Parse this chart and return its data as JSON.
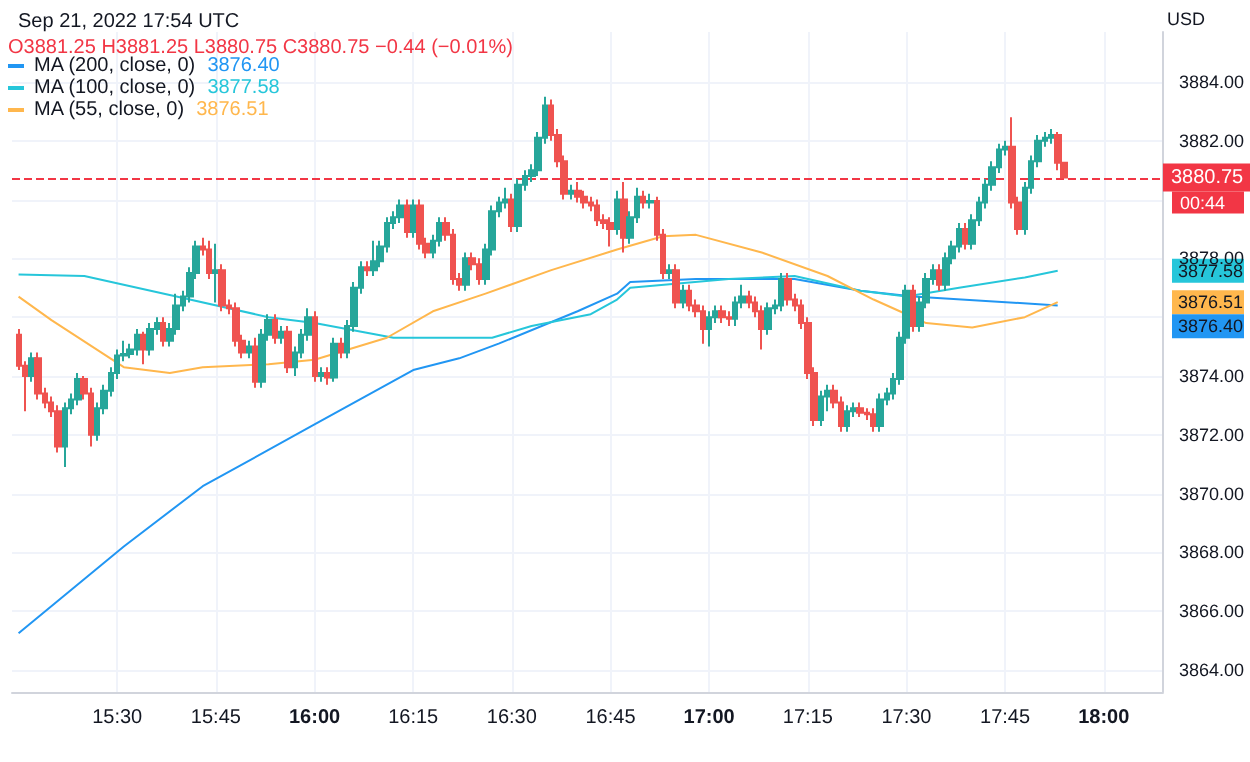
{
  "chart_data": {
    "type": "candlestick",
    "subtitle": "Sep 21, 2022 17:54 UTC",
    "ylabel": "USD",
    "annotations": [
      "O3881.25 H3881.25 L3880.75 C3880.75 −0.44 (−0.01%)",
      "00:44",
      "3876.40",
      "3877.58",
      "3876.51"
    ],
    "x": [
      "2022-09-21T15:15",
      "2022-09-21T15:16",
      "2022-09-21T15:17",
      "2022-09-21T15:18",
      "2022-09-21T15:19",
      "2022-09-21T15:20",
      "2022-09-21T15:21",
      "2022-09-21T15:22",
      "2022-09-21T15:23",
      "2022-09-21T15:24",
      "2022-09-21T15:25",
      "2022-09-21T15:26",
      "2022-09-21T15:27",
      "2022-09-21T15:28",
      "2022-09-21T15:29",
      "2022-09-21T15:30",
      "2022-09-21T15:31",
      "2022-09-21T15:32",
      "2022-09-21T15:33",
      "2022-09-21T15:34",
      "2022-09-21T15:35",
      "2022-09-21T15:36",
      "2022-09-21T15:37",
      "2022-09-21T15:38",
      "2022-09-21T15:39",
      "2022-09-21T15:40",
      "2022-09-21T15:41",
      "2022-09-21T15:42",
      "2022-09-21T15:43",
      "2022-09-21T15:44",
      "2022-09-21T15:45",
      "2022-09-21T15:46",
      "2022-09-21T15:47",
      "2022-09-21T15:48",
      "2022-09-21T15:49",
      "2022-09-21T15:50",
      "2022-09-21T15:51",
      "2022-09-21T15:52",
      "2022-09-21T15:53",
      "2022-09-21T15:54",
      "2022-09-21T15:55",
      "2022-09-21T15:56",
      "2022-09-21T15:57",
      "2022-09-21T15:58",
      "2022-09-21T15:59",
      "2022-09-21T16:00",
      "2022-09-21T16:01",
      "2022-09-21T16:02",
      "2022-09-21T16:03",
      "2022-09-21T16:04",
      "2022-09-21T16:05",
      "2022-09-21T16:06",
      "2022-09-21T16:07",
      "2022-09-21T16:08",
      "2022-09-21T16:09",
      "2022-09-21T16:10",
      "2022-09-21T16:11",
      "2022-09-21T16:12",
      "2022-09-21T16:13",
      "2022-09-21T16:14",
      "2022-09-21T16:15",
      "2022-09-21T16:16",
      "2022-09-21T16:17",
      "2022-09-21T16:18",
      "2022-09-21T16:19",
      "2022-09-21T16:20",
      "2022-09-21T16:21",
      "2022-09-21T16:22",
      "2022-09-21T16:23",
      "2022-09-21T16:24",
      "2022-09-21T16:25",
      "2022-09-21T16:26",
      "2022-09-21T16:27",
      "2022-09-21T16:28",
      "2022-09-21T16:29",
      "2022-09-21T16:30",
      "2022-09-21T16:31",
      "2022-09-21T16:32",
      "2022-09-21T16:33",
      "2022-09-21T16:34",
      "2022-09-21T16:35",
      "2022-09-21T16:36",
      "2022-09-21T16:37",
      "2022-09-21T16:38",
      "2022-09-21T16:39",
      "2022-09-21T16:40",
      "2022-09-21T16:41",
      "2022-09-21T16:42",
      "2022-09-21T16:43",
      "2022-09-21T16:44",
      "2022-09-21T16:45",
      "2022-09-21T16:46",
      "2022-09-21T16:47",
      "2022-09-21T16:48",
      "2022-09-21T16:49",
      "2022-09-21T16:50",
      "2022-09-21T16:51",
      "2022-09-21T16:52",
      "2022-09-21T16:53",
      "2022-09-21T16:54",
      "2022-09-21T16:55",
      "2022-09-21T16:56",
      "2022-09-21T16:57",
      "2022-09-21T16:58",
      "2022-09-21T16:59",
      "2022-09-21T17:00",
      "2022-09-21T17:01",
      "2022-09-21T17:02",
      "2022-09-21T17:03",
      "2022-09-21T17:04",
      "2022-09-21T17:05",
      "2022-09-21T17:06",
      "2022-09-21T17:07",
      "2022-09-21T17:08",
      "2022-09-21T17:09",
      "2022-09-21T17:10",
      "2022-09-21T17:11",
      "2022-09-21T17:12",
      "2022-09-21T17:13",
      "2022-09-21T17:14",
      "2022-09-21T17:15",
      "2022-09-21T17:16",
      "2022-09-21T17:17",
      "2022-09-21T17:18",
      "2022-09-21T17:19",
      "2022-09-21T17:20",
      "2022-09-21T17:21",
      "2022-09-21T17:22",
      "2022-09-21T17:23",
      "2022-09-21T17:24",
      "2022-09-21T17:25",
      "2022-09-21T17:26",
      "2022-09-21T17:27",
      "2022-09-21T17:28",
      "2022-09-21T17:29",
      "2022-09-21T17:30",
      "2022-09-21T17:31",
      "2022-09-21T17:32",
      "2022-09-21T17:33",
      "2022-09-21T17:34",
      "2022-09-21T17:35",
      "2022-09-21T17:36",
      "2022-09-21T17:37",
      "2022-09-21T17:38",
      "2022-09-21T17:39",
      "2022-09-21T17:40",
      "2022-09-21T17:41",
      "2022-09-21T17:42",
      "2022-09-21T17:43",
      "2022-09-21T17:44",
      "2022-09-21T17:45",
      "2022-09-21T17:46",
      "2022-09-21T17:47",
      "2022-09-21T17:48",
      "2022-09-21T17:49",
      "2022-09-21T17:50",
      "2022-09-21T17:51",
      "2022-09-21T17:52",
      "2022-09-21T17:53",
      "2022-09-21T17:54"
    ],
    "ohlc": [
      [
        3875.4,
        3875.6,
        3874.2,
        3874.35
      ],
      [
        3874.35,
        3874.5,
        3872.8,
        3874.0
      ],
      [
        3874.0,
        3874.8,
        3873.8,
        3874.6
      ],
      [
        3874.6,
        3874.8,
        3873.2,
        3873.4
      ],
      [
        3873.4,
        3873.6,
        3872.9,
        3873.1
      ],
      [
        3873.1,
        3873.3,
        3872.6,
        3872.8
      ],
      [
        3872.8,
        3873.0,
        3871.4,
        3871.6
      ],
      [
        3871.6,
        3873.1,
        3870.9,
        3872.9
      ],
      [
        3872.9,
        3873.4,
        3872.7,
        3873.2
      ],
      [
        3873.2,
        3874.1,
        3873.0,
        3873.9
      ],
      [
        3873.9,
        3874.0,
        3873.2,
        3873.4
      ],
      [
        3873.4,
        3873.6,
        3871.6,
        3872.0
      ],
      [
        3872.0,
        3873.1,
        3871.8,
        3872.9
      ],
      [
        3872.9,
        3873.7,
        3872.7,
        3873.5
      ],
      [
        3873.5,
        3874.3,
        3873.3,
        3874.1
      ],
      [
        3874.1,
        3874.9,
        3873.9,
        3874.7
      ],
      [
        3874.7,
        3875.2,
        3874.5,
        3874.75
      ],
      [
        3874.75,
        3875.1,
        3874.6,
        3874.9
      ],
      [
        3874.9,
        3875.6,
        3874.7,
        3875.4
      ],
      [
        3875.4,
        3875.5,
        3874.4,
        3874.9
      ],
      [
        3874.9,
        3875.8,
        3874.7,
        3875.6
      ],
      [
        3875.6,
        3876.0,
        3875.4,
        3875.8
      ],
      [
        3875.8,
        3876.0,
        3875.0,
        3875.2
      ],
      [
        3875.2,
        3875.8,
        3875.0,
        3875.6
      ],
      [
        3875.6,
        3876.8,
        3875.4,
        3876.4
      ],
      [
        3876.4,
        3876.9,
        3876.2,
        3876.7
      ],
      [
        3876.7,
        3877.7,
        3876.5,
        3877.5
      ],
      [
        3877.5,
        3878.6,
        3877.3,
        3878.4
      ],
      [
        3878.4,
        3878.7,
        3878.1,
        3878.3
      ],
      [
        3878.3,
        3878.6,
        3877.3,
        3877.5
      ],
      [
        3877.5,
        3878.5,
        3876.5,
        3877.6
      ],
      [
        3877.6,
        3877.8,
        3876.2,
        3876.4
      ],
      [
        3876.4,
        3876.6,
        3876.1,
        3876.3
      ],
      [
        3876.3,
        3876.5,
        3875.0,
        3875.2
      ],
      [
        3875.2,
        3875.4,
        3874.6,
        3874.8
      ],
      [
        3874.8,
        3875.2,
        3874.6,
        3875.0
      ],
      [
        3875.0,
        3875.3,
        3873.6,
        3873.8
      ],
      [
        3873.8,
        3875.6,
        3873.6,
        3875.4
      ],
      [
        3875.4,
        3876.1,
        3875.2,
        3875.9
      ],
      [
        3875.9,
        3876.1,
        3875.1,
        3875.3
      ],
      [
        3875.3,
        3875.7,
        3875.1,
        3875.5
      ],
      [
        3875.5,
        3875.7,
        3874.1,
        3874.3
      ],
      [
        3874.3,
        3875.0,
        3874.0,
        3874.8
      ],
      [
        3874.8,
        3875.6,
        3874.6,
        3875.4
      ],
      [
        3875.4,
        3876.3,
        3875.2,
        3876.0
      ],
      [
        3876.0,
        3876.2,
        3873.8,
        3874.0
      ],
      [
        3874.0,
        3874.3,
        3873.8,
        3874.1
      ],
      [
        3874.1,
        3874.3,
        3873.7,
        3873.95
      ],
      [
        3873.95,
        3875.3,
        3873.8,
        3875.1
      ],
      [
        3875.1,
        3875.3,
        3874.6,
        3874.8
      ],
      [
        3874.8,
        3875.9,
        3874.6,
        3875.7
      ],
      [
        3875.7,
        3877.2,
        3875.5,
        3877.0
      ],
      [
        3877.0,
        3877.9,
        3876.8,
        3877.7
      ],
      [
        3877.7,
        3877.9,
        3877.4,
        3877.6
      ],
      [
        3877.6,
        3878.6,
        3877.4,
        3877.9
      ],
      [
        3877.9,
        3878.6,
        3877.7,
        3878.4
      ],
      [
        3878.4,
        3879.4,
        3878.2,
        3879.2
      ],
      [
        3879.2,
        3879.6,
        3879.0,
        3879.4
      ],
      [
        3879.4,
        3880.0,
        3879.2,
        3879.8
      ],
      [
        3879.8,
        3880.0,
        3878.7,
        3878.9
      ],
      [
        3878.9,
        3880.0,
        3878.7,
        3879.8
      ],
      [
        3879.8,
        3880.0,
        3878.3,
        3878.5
      ],
      [
        3878.5,
        3878.7,
        3878.0,
        3878.2
      ],
      [
        3878.2,
        3878.8,
        3878.0,
        3878.6
      ],
      [
        3878.6,
        3879.4,
        3878.4,
        3879.2
      ],
      [
        3879.2,
        3879.4,
        3878.6,
        3878.8
      ],
      [
        3878.8,
        3879.0,
        3877.1,
        3877.3
      ],
      [
        3877.3,
        3877.5,
        3876.9,
        3877.1
      ],
      [
        3877.1,
        3878.2,
        3876.9,
        3878.0
      ],
      [
        3878.0,
        3878.2,
        3877.6,
        3877.8
      ],
      [
        3877.8,
        3878.0,
        3877.1,
        3877.3
      ],
      [
        3877.3,
        3878.5,
        3877.1,
        3878.3
      ],
      [
        3878.3,
        3879.8,
        3878.1,
        3879.6
      ],
      [
        3879.6,
        3880.1,
        3879.4,
        3879.9
      ],
      [
        3879.9,
        3880.4,
        3879.7,
        3880.0
      ],
      [
        3880.0,
        3880.2,
        3878.9,
        3879.1
      ],
      [
        3879.1,
        3880.7,
        3878.9,
        3880.5
      ],
      [
        3880.5,
        3881.0,
        3880.3,
        3880.8
      ],
      [
        3880.8,
        3881.2,
        3880.6,
        3881.0
      ],
      [
        3881.0,
        3882.3,
        3880.8,
        3882.1
      ],
      [
        3882.1,
        3883.5,
        3881.9,
        3883.2
      ],
      [
        3883.2,
        3883.4,
        3882.0,
        3882.2
      ],
      [
        3882.2,
        3882.4,
        3881.1,
        3881.3
      ],
      [
        3881.3,
        3881.5,
        3880.0,
        3880.2
      ],
      [
        3880.2,
        3880.5,
        3880.0,
        3880.3
      ],
      [
        3880.3,
        3880.6,
        3879.9,
        3880.1
      ],
      [
        3880.1,
        3880.3,
        3879.7,
        3879.9
      ],
      [
        3879.9,
        3880.1,
        3879.6,
        3879.8
      ],
      [
        3879.8,
        3880.0,
        3879.1,
        3879.3
      ],
      [
        3879.3,
        3879.5,
        3879.0,
        3879.2
      ],
      [
        3879.2,
        3879.4,
        3878.4,
        3879.0
      ],
      [
        3879.0,
        3880.3,
        3878.8,
        3880.0
      ],
      [
        3880.0,
        3880.6,
        3878.2,
        3878.7
      ],
      [
        3878.7,
        3879.6,
        3878.5,
        3879.4
      ],
      [
        3879.4,
        3880.4,
        3879.2,
        3880.1
      ],
      [
        3880.1,
        3880.3,
        3879.7,
        3879.9
      ],
      [
        3879.9,
        3880.2,
        3879.7,
        3879.95
      ],
      [
        3879.95,
        3880.1,
        3878.6,
        3878.8
      ],
      [
        3878.8,
        3879.0,
        3877.3,
        3877.5
      ],
      [
        3877.5,
        3877.8,
        3877.3,
        3877.6
      ],
      [
        3877.6,
        3877.8,
        3876.3,
        3876.5
      ],
      [
        3876.5,
        3877.1,
        3876.3,
        3876.9
      ],
      [
        3876.9,
        3877.1,
        3876.2,
        3876.4
      ],
      [
        3876.4,
        3876.6,
        3876.0,
        3876.2
      ],
      [
        3876.2,
        3876.4,
        3875.1,
        3875.6
      ],
      [
        3875.6,
        3876.2,
        3875.0,
        3876.0
      ],
      [
        3876.0,
        3876.4,
        3875.8,
        3876.2
      ],
      [
        3876.2,
        3876.4,
        3875.8,
        3876.0
      ],
      [
        3876.0,
        3876.2,
        3875.7,
        3875.95
      ],
      [
        3875.95,
        3876.7,
        3875.7,
        3876.5
      ],
      [
        3876.5,
        3877.1,
        3876.3,
        3876.7
      ],
      [
        3876.7,
        3876.9,
        3876.3,
        3876.5
      ],
      [
        3876.5,
        3876.7,
        3876.0,
        3876.2
      ],
      [
        3876.2,
        3876.4,
        3874.9,
        3875.6
      ],
      [
        3875.6,
        3876.5,
        3875.4,
        3876.3
      ],
      [
        3876.3,
        3876.6,
        3876.1,
        3876.4
      ],
      [
        3876.4,
        3877.5,
        3876.2,
        3877.3
      ],
      [
        3877.3,
        3877.5,
        3876.4,
        3876.6
      ],
      [
        3876.6,
        3876.8,
        3876.2,
        3876.4
      ],
      [
        3876.4,
        3876.6,
        3875.6,
        3875.8
      ],
      [
        3875.8,
        3876.0,
        3873.9,
        3874.1
      ],
      [
        3874.1,
        3874.3,
        3872.3,
        3872.5
      ],
      [
        3872.5,
        3873.5,
        3872.3,
        3873.3
      ],
      [
        3873.3,
        3873.7,
        3872.8,
        3873.5
      ],
      [
        3873.5,
        3873.7,
        3872.9,
        3873.1
      ],
      [
        3873.1,
        3873.3,
        3872.1,
        3872.3
      ],
      [
        3872.3,
        3873.0,
        3872.1,
        3872.8
      ],
      [
        3872.8,
        3873.1,
        3872.6,
        3872.9
      ],
      [
        3872.9,
        3873.1,
        3872.6,
        3872.75
      ],
      [
        3872.75,
        3872.9,
        3872.5,
        3872.7
      ],
      [
        3872.7,
        3872.9,
        3872.1,
        3872.3
      ],
      [
        3872.3,
        3873.4,
        3872.1,
        3873.2
      ],
      [
        3873.2,
        3873.6,
        3873.0,
        3873.4
      ],
      [
        3873.4,
        3874.1,
        3873.2,
        3873.9
      ],
      [
        3873.9,
        3875.5,
        3873.7,
        3875.3
      ],
      [
        3875.3,
        3877.1,
        3875.1,
        3876.9
      ],
      [
        3876.9,
        3877.1,
        3875.5,
        3875.7
      ],
      [
        3875.7,
        3876.7,
        3875.5,
        3876.5
      ],
      [
        3876.5,
        3877.5,
        3876.3,
        3877.3
      ],
      [
        3877.3,
        3877.8,
        3877.1,
        3877.6
      ],
      [
        3877.6,
        3877.8,
        3876.9,
        3877.1
      ],
      [
        3877.1,
        3878.2,
        3876.9,
        3878.0
      ],
      [
        3878.0,
        3878.6,
        3877.8,
        3878.4
      ],
      [
        3878.4,
        3879.2,
        3878.2,
        3879.0
      ],
      [
        3879.0,
        3879.2,
        3878.3,
        3878.5
      ],
      [
        3878.5,
        3879.5,
        3878.3,
        3879.3
      ],
      [
        3879.3,
        3880.1,
        3879.1,
        3879.9
      ],
      [
        3879.9,
        3880.7,
        3879.7,
        3880.5
      ],
      [
        3880.5,
        3881.3,
        3880.3,
        3881.1
      ],
      [
        3881.1,
        3881.9,
        3880.9,
        3881.7
      ],
      [
        3881.7,
        3882.0,
        3881.5,
        3881.8
      ],
      [
        3881.8,
        3882.8,
        3879.7,
        3879.9
      ],
      [
        3879.9,
        3880.1,
        3878.8,
        3879.0
      ],
      [
        3879.0,
        3880.6,
        3878.8,
        3880.4
      ],
      [
        3880.4,
        3881.5,
        3880.2,
        3881.3
      ],
      [
        3881.3,
        3882.2,
        3881.1,
        3882.0
      ],
      [
        3882.0,
        3882.3,
        3881.8,
        3882.1
      ],
      [
        3882.1,
        3882.4,
        3881.9,
        3882.2
      ],
      [
        3882.2,
        3882.3,
        3881.0,
        3881.25
      ],
      [
        3881.25,
        3881.25,
        3880.75,
        3880.75
      ]
    ],
    "series": [
      {
        "name": "MA (200, close, 0)",
        "type": "line",
        "color": "#2196f3",
        "x": [
          "2022-09-21T15:15",
          "2022-09-21T15:31",
          "2022-09-21T15:43",
          "2022-09-21T16:00",
          "2022-09-21T16:15",
          "2022-09-21T16:22",
          "2022-09-21T16:28",
          "2022-09-21T16:40",
          "2022-09-21T16:46",
          "2022-09-21T16:48",
          "2022-09-21T16:58",
          "2022-09-21T17:13",
          "2022-09-21T17:23",
          "2022-09-21T17:31",
          "2022-09-21T17:53"
        ],
        "values": [
          3865.25,
          3868.2,
          3870.25,
          3872.35,
          3874.2,
          3874.6,
          3875.1,
          3876.2,
          3876.8,
          3877.2,
          3877.3,
          3877.3,
          3876.9,
          3876.7,
          3876.4
        ]
      },
      {
        "name": "MA (100, close, 0)",
        "type": "line",
        "color": "#26c6da",
        "x": [
          "2022-09-21T15:15",
          "2022-09-21T15:25",
          "2022-09-21T15:39",
          "2022-09-21T15:53",
          "2022-09-21T16:00",
          "2022-09-21T16:12",
          "2022-09-21T16:27",
          "2022-09-21T16:33",
          "2022-09-21T16:42",
          "2022-09-21T16:46",
          "2022-09-21T16:48",
          "2022-09-21T17:03",
          "2022-09-21T17:13",
          "2022-09-21T17:23",
          "2022-09-21T17:30",
          "2022-09-21T17:38",
          "2022-09-21T17:48",
          "2022-09-21T17:53"
        ],
        "values": [
          3877.45,
          3877.4,
          3876.7,
          3876.0,
          3875.8,
          3875.3,
          3875.3,
          3875.7,
          3876.1,
          3876.6,
          3877.0,
          3877.3,
          3877.4,
          3876.9,
          3876.7,
          3877.0,
          3877.35,
          3877.58
        ]
      },
      {
        "name": "MA (55, close, 0)",
        "type": "line",
        "color": "#ffb74d",
        "x": [
          "2022-09-21T15:15",
          "2022-09-21T15:20",
          "2022-09-21T15:31",
          "2022-09-21T15:38",
          "2022-09-21T15:43",
          "2022-09-21T15:53",
          "2022-09-21T16:00",
          "2022-09-21T16:11",
          "2022-09-21T16:18",
          "2022-09-21T16:26",
          "2022-09-21T16:36",
          "2022-09-21T16:46",
          "2022-09-21T16:53",
          "2022-09-21T16:58",
          "2022-09-21T17:08",
          "2022-09-21T17:18",
          "2022-09-21T17:25",
          "2022-09-21T17:30",
          "2022-09-21T17:33",
          "2022-09-21T17:40",
          "2022-09-21T17:48",
          "2022-09-21T17:53"
        ],
        "values": [
          3876.7,
          3875.9,
          3874.3,
          3874.1,
          3874.3,
          3874.4,
          3874.55,
          3875.3,
          3876.2,
          3876.8,
          3877.6,
          3878.3,
          3878.75,
          3878.8,
          3878.2,
          3877.4,
          3876.6,
          3876.1,
          3875.8,
          3875.65,
          3876.0,
          3876.51
        ]
      }
    ],
    "xlim": [
      "2022-09-21T15:14",
      "2022-09-21T18:09"
    ],
    "xticks": [
      {
        "value": "2022-09-21T15:30",
        "label": "15:30"
      },
      {
        "value": "2022-09-21T15:45",
        "label": "15:45"
      },
      {
        "value": "2022-09-21T16:00",
        "label": "16:00"
      },
      {
        "value": "2022-09-21T16:15",
        "label": "16:15"
      },
      {
        "value": "2022-09-21T16:30",
        "label": "16:30"
      },
      {
        "value": "2022-09-21T16:45",
        "label": "16:45"
      },
      {
        "value": "2022-09-21T17:00",
        "label": "17:00"
      },
      {
        "value": "2022-09-21T17:15",
        "label": "17:15"
      },
      {
        "value": "2022-09-21T17:30",
        "label": "17:30"
      },
      {
        "value": "2022-09-21T17:45",
        "label": "17:45"
      },
      {
        "value": "2022-09-21T18:00",
        "label": "18:00"
      }
    ],
    "ylim": [
      3863.25,
      3885.7
    ],
    "yticks": [
      {
        "value": 3864,
        "label": "3864.00"
      },
      {
        "value": 3866,
        "label": "3866.00"
      },
      {
        "value": 3868,
        "label": "3868.00"
      },
      {
        "value": 3870,
        "label": "3870.00"
      },
      {
        "value": 3872,
        "label": "3872.00"
      },
      {
        "value": 3874,
        "label": "3874.00"
      },
      {
        "value": 3876,
        "label": null
      },
      {
        "value": 3878,
        "label": "3878.00"
      },
      {
        "value": 3880,
        "label": null
      },
      {
        "value": 3882,
        "label": "3882.00"
      },
      {
        "value": 3884,
        "label": "3884.00"
      }
    ],
    "ref_lines": [
      {
        "axis": "y",
        "value": 3880.75,
        "label": "3880.75",
        "color": "#f23645",
        "line_style": "dashed"
      }
    ],
    "grid": true,
    "legend": "top left"
  }
}
